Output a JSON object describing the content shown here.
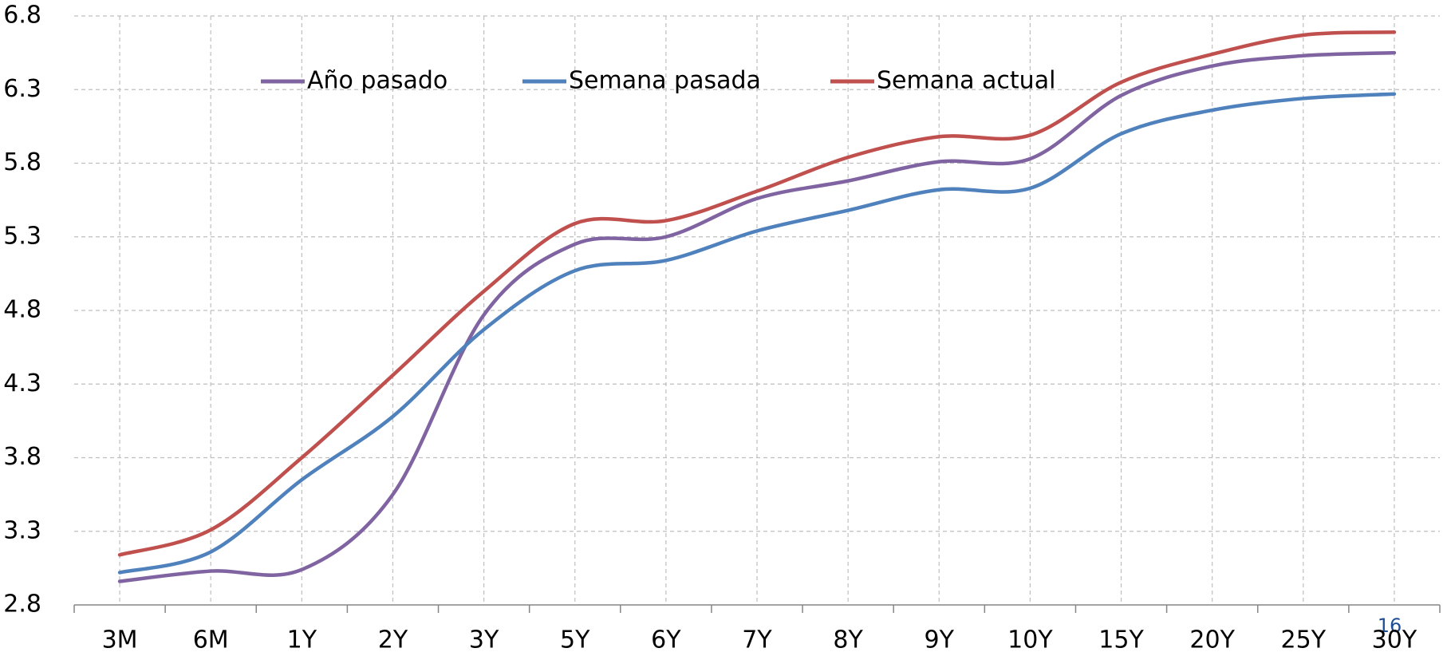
{
  "chart_data": {
    "type": "line",
    "categories": [
      "3M",
      "6M",
      "1Y",
      "2Y",
      "3Y",
      "5Y",
      "6Y",
      "7Y",
      "8Y",
      "9Y",
      "10Y",
      "15Y",
      "20Y",
      "25Y",
      "30Y"
    ],
    "series": [
      {
        "name": "Año pasado",
        "color": "#8064a2",
        "values": [
          2.96,
          3.03,
          3.04,
          3.55,
          4.77,
          5.25,
          5.3,
          5.56,
          5.68,
          5.81,
          5.83,
          6.26,
          6.46,
          6.53,
          6.55
        ]
      },
      {
        "name": "Semana pasada",
        "color": "#4f81bd",
        "values": [
          3.02,
          3.16,
          3.65,
          4.08,
          4.67,
          5.07,
          5.14,
          5.34,
          5.48,
          5.62,
          5.63,
          6.0,
          6.16,
          6.24,
          6.27
        ]
      },
      {
        "name": "Semana actual",
        "color": "#c0504d",
        "values": [
          3.14,
          3.31,
          3.8,
          4.36,
          4.93,
          5.39,
          5.41,
          5.61,
          5.84,
          5.98,
          5.99,
          6.35,
          6.54,
          6.67,
          6.69
        ]
      }
    ],
    "ylim": [
      2.8,
      6.8
    ],
    "yticks": [
      2.8,
      3.3,
      3.8,
      4.3,
      4.8,
      5.3,
      5.8,
      6.3,
      6.8
    ],
    "grid": true,
    "legend": "top",
    "page_number": "16"
  }
}
